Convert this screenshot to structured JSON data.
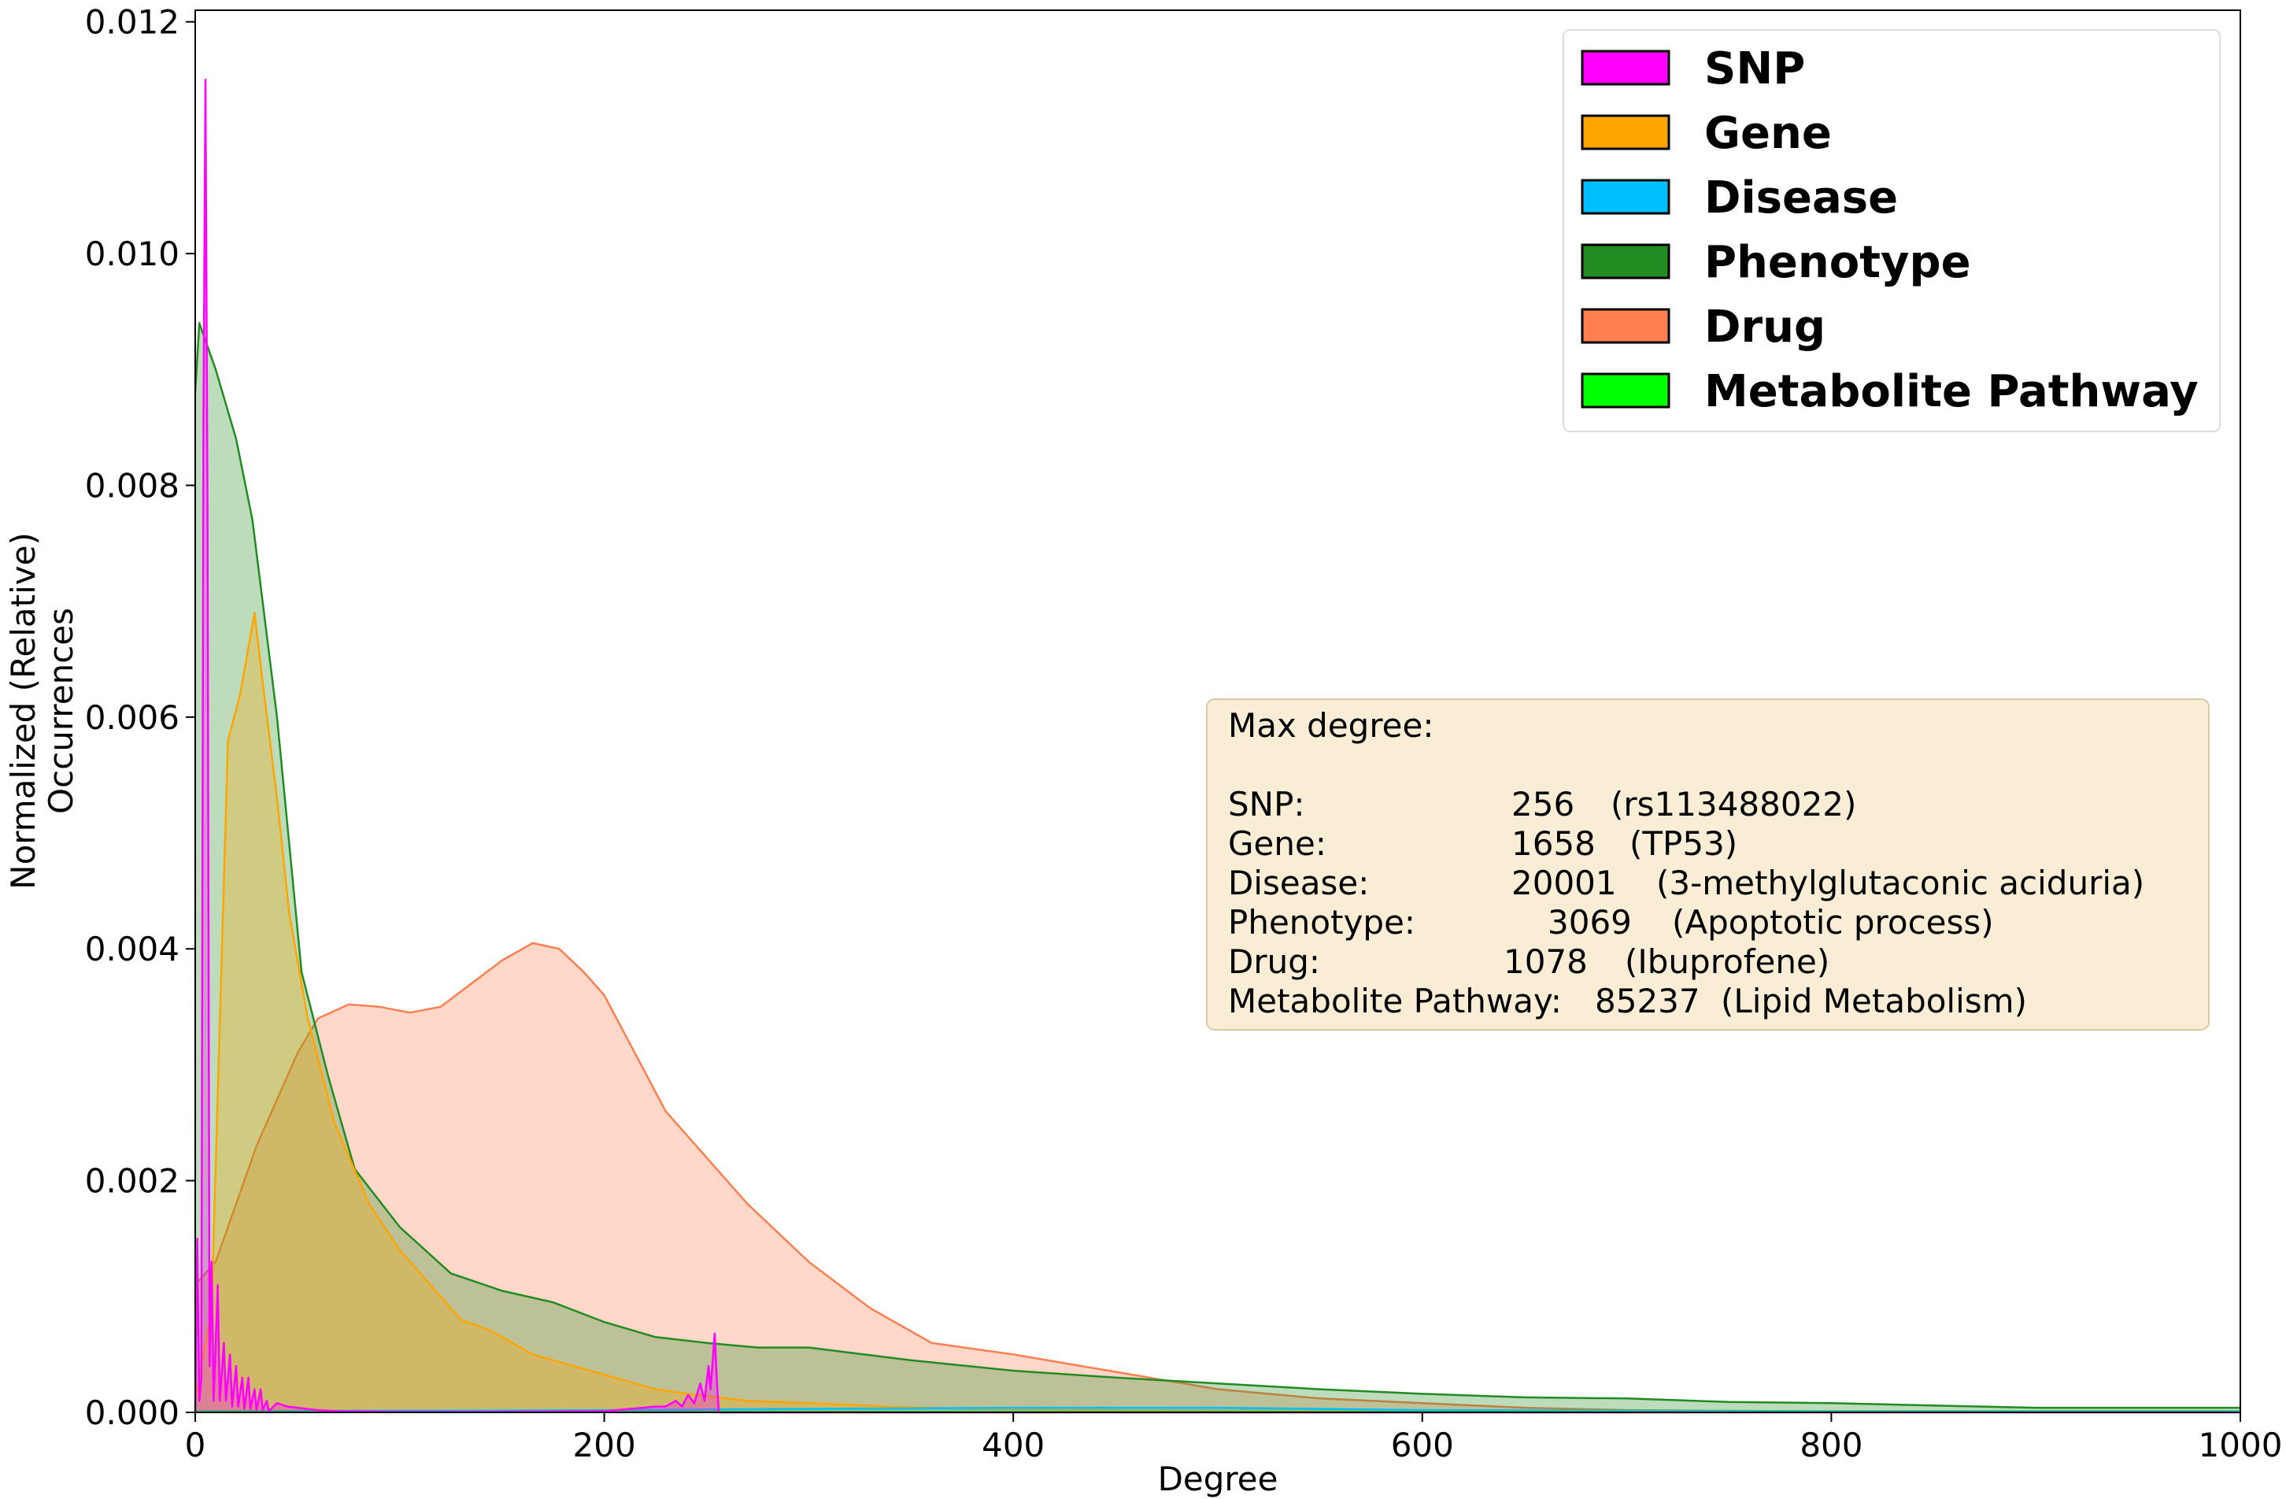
{
  "chart_data": {
    "type": "area",
    "xlabel": "Degree",
    "ylabel_lines": [
      "Normalized (Relative)",
      "Occurrences"
    ],
    "xlim": [
      0,
      1000
    ],
    "ylim": [
      0,
      0.0121
    ],
    "x_ticks": [
      0,
      200,
      400,
      600,
      800,
      1000
    ],
    "x_tick_labels": [
      "0",
      "200",
      "400",
      "600",
      "800",
      "1000"
    ],
    "y_ticks": [
      0,
      0.002,
      0.004,
      0.006,
      0.008,
      0.01,
      0.012
    ],
    "y_tick_labels": [
      "0.000",
      "0.002",
      "0.004",
      "0.006",
      "0.008",
      "0.010",
      "0.012"
    ],
    "grid": false,
    "legend_position": "top-right",
    "series": [
      {
        "name": "Drug",
        "color": "#FF7F50",
        "points": [
          [
            0,
            0.0011
          ],
          [
            10,
            0.0013
          ],
          [
            20,
            0.0018
          ],
          [
            30,
            0.0023
          ],
          [
            40,
            0.0027
          ],
          [
            50,
            0.0031
          ],
          [
            60,
            0.0034
          ],
          [
            75,
            0.00352
          ],
          [
            90,
            0.0035
          ],
          [
            105,
            0.00345
          ],
          [
            120,
            0.0035
          ],
          [
            135,
            0.0037
          ],
          [
            150,
            0.0039
          ],
          [
            165,
            0.00405
          ],
          [
            178,
            0.004
          ],
          [
            190,
            0.0038
          ],
          [
            200,
            0.0036
          ],
          [
            215,
            0.0031
          ],
          [
            230,
            0.0026
          ],
          [
            250,
            0.0022
          ],
          [
            270,
            0.0018
          ],
          [
            300,
            0.0013
          ],
          [
            330,
            0.0009
          ],
          [
            360,
            0.0006
          ],
          [
            400,
            0.0005
          ],
          [
            450,
            0.00035
          ],
          [
            500,
            0.0002
          ],
          [
            550,
            0.00012
          ],
          [
            600,
            8e-05
          ],
          [
            650,
            4e-05
          ],
          [
            700,
            2e-05
          ],
          [
            800,
            8e-06
          ],
          [
            1000,
            3e-06
          ]
        ]
      },
      {
        "name": "Phenotype",
        "color": "#228B22",
        "points": [
          [
            0,
            0.0088
          ],
          [
            2,
            0.0094
          ],
          [
            10,
            0.009
          ],
          [
            20,
            0.0084
          ],
          [
            28,
            0.0077
          ],
          [
            40,
            0.006
          ],
          [
            52,
            0.0038
          ],
          [
            65,
            0.0029
          ],
          [
            78,
            0.0021
          ],
          [
            100,
            0.0016
          ],
          [
            125,
            0.0012
          ],
          [
            150,
            0.00105
          ],
          [
            175,
            0.00095
          ],
          [
            200,
            0.00078
          ],
          [
            225,
            0.00065
          ],
          [
            250,
            0.0006
          ],
          [
            275,
            0.00056
          ],
          [
            300,
            0.00056
          ],
          [
            350,
            0.00045
          ],
          [
            400,
            0.00036
          ],
          [
            450,
            0.0003
          ],
          [
            500,
            0.00025
          ],
          [
            550,
            0.0002
          ],
          [
            600,
            0.00016
          ],
          [
            650,
            0.00013
          ],
          [
            700,
            0.00012
          ],
          [
            750,
            9e-05
          ],
          [
            800,
            8e-05
          ],
          [
            850,
            6e-05
          ],
          [
            900,
            4e-05
          ],
          [
            950,
            4e-05
          ],
          [
            1000,
            4e-05
          ]
        ]
      },
      {
        "name": "Gene",
        "color": "#FFA500",
        "points": [
          [
            0,
            0.0001
          ],
          [
            8,
            0.0009
          ],
          [
            16,
            0.0058
          ],
          [
            22,
            0.0062
          ],
          [
            29,
            0.0069
          ],
          [
            33,
            0.0063
          ],
          [
            40,
            0.0053
          ],
          [
            46,
            0.0043
          ],
          [
            55,
            0.0034
          ],
          [
            68,
            0.0025
          ],
          [
            85,
            0.0018
          ],
          [
            100,
            0.0014
          ],
          [
            115,
            0.0011
          ],
          [
            130,
            0.0008
          ],
          [
            145,
            0.0007
          ],
          [
            165,
            0.0005
          ],
          [
            185,
            0.0004
          ],
          [
            205,
            0.0003
          ],
          [
            225,
            0.0002
          ],
          [
            245,
            0.00015
          ],
          [
            270,
            0.0001
          ],
          [
            300,
            8e-05
          ],
          [
            340,
            5e-05
          ],
          [
            380,
            3e-05
          ],
          [
            450,
            2e-05
          ],
          [
            600,
            1e-05
          ],
          [
            800,
            5e-06
          ],
          [
            1000,
            2e-06
          ]
        ]
      },
      {
        "name": "Disease",
        "color": "#00BFFF",
        "points": [
          [
            0,
            1e-05
          ],
          [
            200,
            2e-05
          ],
          [
            400,
            4e-05
          ],
          [
            500,
            4e-05
          ],
          [
            600,
            2e-05
          ],
          [
            800,
            1e-05
          ],
          [
            1000,
            1e-05
          ]
        ]
      },
      {
        "name": "Metabolite Pathway",
        "color": "#00FF00",
        "points": [
          [
            0,
            6e-06
          ],
          [
            500,
            5e-06
          ],
          [
            1000,
            5e-06
          ]
        ]
      },
      {
        "name": "SNP",
        "color": "#FF00FF",
        "points": [
          [
            0,
            0
          ],
          [
            1,
            0.0015
          ],
          [
            2,
            0.0001
          ],
          [
            3,
            0.0003
          ],
          [
            4,
            0.0085
          ],
          [
            5,
            0.0115
          ],
          [
            6,
            0.0078
          ],
          [
            7,
            0.0004
          ],
          [
            8,
            0.0013
          ],
          [
            9,
            0.0001
          ],
          [
            11,
            0.0011
          ],
          [
            12,
            0.0001
          ],
          [
            14,
            0.0006
          ],
          [
            15,
            0.0001
          ],
          [
            17,
            0.0005
          ],
          [
            18,
            5e-05
          ],
          [
            20,
            0.0004
          ],
          [
            21,
            5e-05
          ],
          [
            23,
            0.0003
          ],
          [
            24,
            3e-05
          ],
          [
            26,
            0.0003
          ],
          [
            27,
            3e-05
          ],
          [
            29,
            0.0002
          ],
          [
            30,
            2e-05
          ],
          [
            32,
            0.0002
          ],
          [
            33,
            2e-05
          ],
          [
            35,
            0.0001
          ],
          [
            36,
            1e-05
          ],
          [
            40,
            8e-05
          ],
          [
            45,
            5e-05
          ],
          [
            50,
            4e-05
          ],
          [
            55,
            3e-05
          ],
          [
            60,
            2e-05
          ],
          [
            70,
            1e-05
          ],
          [
            100,
            5e-06
          ],
          [
            150,
            5e-06
          ],
          [
            200,
            1e-05
          ],
          [
            225,
            5e-05
          ],
          [
            230,
            5e-05
          ],
          [
            235,
            0.0001
          ],
          [
            238,
            5e-05
          ],
          [
            241,
            0.00015
          ],
          [
            244,
            8e-05
          ],
          [
            247,
            0.00025
          ],
          [
            249,
            0.0001
          ],
          [
            251,
            0.0004
          ],
          [
            252,
            0.0002
          ],
          [
            254,
            0.00068
          ],
          [
            255,
            0.0003
          ],
          [
            256,
            0.0
          ],
          [
            1000,
            0
          ]
        ]
      }
    ]
  },
  "legend": {
    "items": [
      {
        "label": "SNP",
        "color": "#FF00FF"
      },
      {
        "label": "Gene",
        "color": "#FFA500"
      },
      {
        "label": "Disease",
        "color": "#00BFFF"
      },
      {
        "label": "Phenotype",
        "color": "#228B22"
      },
      {
        "label": "Drug",
        "color": "#FF7F50"
      },
      {
        "label": "Metabolite Pathway",
        "color": "#00FF00"
      }
    ]
  },
  "info_box": {
    "title": "Max degree:",
    "rows": [
      {
        "label": "SNP:",
        "value": "256",
        "note": "(rs113488022)"
      },
      {
        "label": "Gene:",
        "value": "1658",
        "note": "(TP53)"
      },
      {
        "label": "Disease:",
        "value": "20001",
        "note": "(3-methylglutaconic aciduria)"
      },
      {
        "label": "Phenotype:",
        "value": "3069",
        "note": "(Apoptotic process)"
      },
      {
        "label": "Drug:",
        "value": "1078",
        "note": "(Ibuprofene)"
      },
      {
        "label": "Metabolite Pathway:",
        "value": "85237",
        "note": "(Lipid Metabolism)"
      }
    ]
  }
}
